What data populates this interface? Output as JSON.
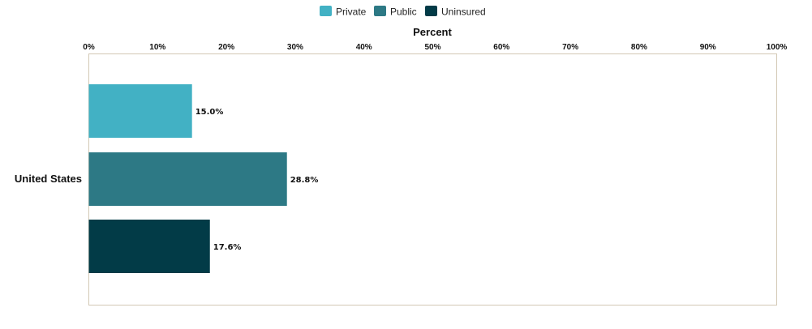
{
  "chart_data": {
    "type": "bar",
    "orientation": "horizontal",
    "xlabel": "Percent",
    "xlim": [
      0,
      100
    ],
    "x_ticks": [
      "0%",
      "10%",
      "20%",
      "30%",
      "40%",
      "50%",
      "60%",
      "70%",
      "80%",
      "90%",
      "100%"
    ],
    "categories": [
      "United States"
    ],
    "series": [
      {
        "name": "Private",
        "values": [
          15.0
        ],
        "labels": [
          "15.0%"
        ],
        "color": "#42b1c4"
      },
      {
        "name": "Public",
        "values": [
          28.8
        ],
        "labels": [
          "28.8%"
        ],
        "color": "#2d7985"
      },
      {
        "name": "Uninsured",
        "values": [
          17.6
        ],
        "labels": [
          "17.6%"
        ],
        "color": "#023b47"
      }
    ],
    "legend_position": "top-center",
    "grid": false,
    "plot_border_color": "#d3c8b4"
  }
}
